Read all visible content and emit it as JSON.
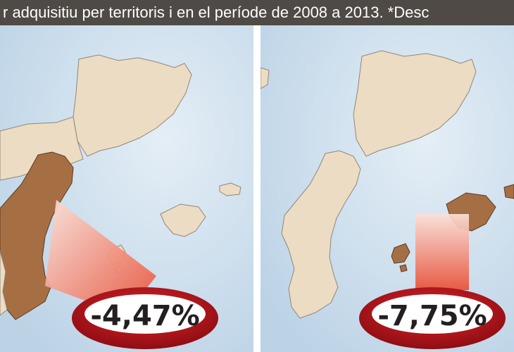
{
  "header": {
    "text": "r adquisitiu per territoris i en el període de 2008 a 2013. *Desc"
  },
  "maps": [
    {
      "percent": "-4,47%",
      "highlighted_region": "valencia"
    },
    {
      "percent": "-7,75%",
      "highlighted_region": "balears"
    }
  ],
  "colors": {
    "sea": "#cfe0ee",
    "land": "#ecdcc3",
    "highlight": "#a66f43",
    "badge": "#c4161c",
    "badge_center": "#ffffff"
  }
}
